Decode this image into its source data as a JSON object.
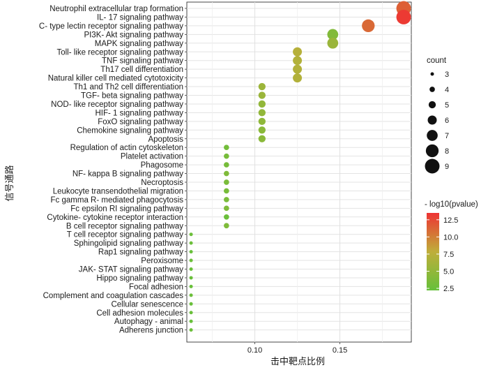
{
  "chart_data": {
    "type": "scatter",
    "xlabel": "击中靶点比例",
    "ylabel": "信号通路",
    "xlim": [
      0.06,
      0.192
    ],
    "xticks": [
      0.1,
      0.15
    ],
    "xtick_labels": [
      "0.10",
      "0.15"
    ],
    "grid": true,
    "legend_placement": "right",
    "size_legend": {
      "title": "count",
      "values": [
        3,
        4,
        5,
        6,
        7,
        8,
        9
      ]
    },
    "color_legend": {
      "title": "- log10(pvalue)",
      "tick_labels": [
        "2.5",
        "5.0",
        "7.5",
        "10.0",
        "12.5"
      ],
      "tick_values": [
        2.5,
        5.0,
        7.5,
        10.0,
        12.5
      ],
      "range": [
        2.2,
        13.5
      ],
      "low_color": "#66c03a",
      "mid_color": "#bfae3a",
      "high_color": "#ee3333"
    },
    "points": [
      {
        "pathway": "Neutrophil extracellular trap formation",
        "ratio": 0.1875,
        "count": 9,
        "neglog10p": 11.5
      },
      {
        "pathway": "IL- 17 signaling pathway",
        "ratio": 0.1875,
        "count": 9,
        "neglog10p": 13.2
      },
      {
        "pathway": "C- type lectin receptor signaling pathway",
        "ratio": 0.1667,
        "count": 8,
        "neglog10p": 11.0
      },
      {
        "pathway": "PI3K- Akt signaling pathway",
        "ratio": 0.1458,
        "count": 7,
        "neglog10p": 4.0
      },
      {
        "pathway": "MAPK signaling pathway",
        "ratio": 0.1458,
        "count": 7,
        "neglog10p": 5.5
      },
      {
        "pathway": "Toll- like receptor signaling pathway",
        "ratio": 0.125,
        "count": 6,
        "neglog10p": 7.3
      },
      {
        "pathway": "TNF signaling pathway",
        "ratio": 0.125,
        "count": 6,
        "neglog10p": 7.0
      },
      {
        "pathway": "Th17 cell differentiation",
        "ratio": 0.125,
        "count": 6,
        "neglog10p": 7.0
      },
      {
        "pathway": "Natural killer cell mediated cytotoxicity",
        "ratio": 0.125,
        "count": 6,
        "neglog10p": 7.0
      },
      {
        "pathway": "Th1 and Th2 cell differentiation",
        "ratio": 0.1042,
        "count": 5,
        "neglog10p": 5.6
      },
      {
        "pathway": "TGF- beta signaling pathway",
        "ratio": 0.1042,
        "count": 5,
        "neglog10p": 5.5
      },
      {
        "pathway": "NOD- like receptor signaling pathway",
        "ratio": 0.1042,
        "count": 5,
        "neglog10p": 5.0
      },
      {
        "pathway": "HIF- 1 signaling pathway",
        "ratio": 0.1042,
        "count": 5,
        "neglog10p": 5.0
      },
      {
        "pathway": "FoxO signaling pathway",
        "ratio": 0.1042,
        "count": 5,
        "neglog10p": 4.8
      },
      {
        "pathway": "Chemokine signaling pathway",
        "ratio": 0.1042,
        "count": 5,
        "neglog10p": 4.5
      },
      {
        "pathway": "Apoptosis",
        "ratio": 0.1042,
        "count": 5,
        "neglog10p": 4.5
      },
      {
        "pathway": "Regulation of actin cytoskeleton",
        "ratio": 0.0833,
        "count": 4,
        "neglog10p": 3.0
      },
      {
        "pathway": "Platelet activation",
        "ratio": 0.0833,
        "count": 4,
        "neglog10p": 3.3
      },
      {
        "pathway": "Phagosome",
        "ratio": 0.0833,
        "count": 4,
        "neglog10p": 3.3
      },
      {
        "pathway": "NF- kappa B signaling pathway",
        "ratio": 0.0833,
        "count": 4,
        "neglog10p": 3.8
      },
      {
        "pathway": "Necroptosis",
        "ratio": 0.0833,
        "count": 4,
        "neglog10p": 3.5
      },
      {
        "pathway": "Leukocyte transendothelial migration",
        "ratio": 0.0833,
        "count": 4,
        "neglog10p": 3.3
      },
      {
        "pathway": "Fc gamma R- mediated phagocytosis",
        "ratio": 0.0833,
        "count": 4,
        "neglog10p": 3.5
      },
      {
        "pathway": "Fc epsilon RI signaling pathway",
        "ratio": 0.0833,
        "count": 4,
        "neglog10p": 3.8
      },
      {
        "pathway": "Cytokine- cytokine receptor interaction",
        "ratio": 0.0833,
        "count": 4,
        "neglog10p": 2.5
      },
      {
        "pathway": "B cell receptor signaling pathway",
        "ratio": 0.0833,
        "count": 4,
        "neglog10p": 3.8
      },
      {
        "pathway": "T cell receptor signaling pathway",
        "ratio": 0.0625,
        "count": 3,
        "neglog10p": 2.6
      },
      {
        "pathway": "Sphingolipid signaling pathway",
        "ratio": 0.0625,
        "count": 3,
        "neglog10p": 2.6
      },
      {
        "pathway": "Rap1 signaling pathway",
        "ratio": 0.0625,
        "count": 3,
        "neglog10p": 2.3
      },
      {
        "pathway": "Peroxisome",
        "ratio": 0.0625,
        "count": 3,
        "neglog10p": 2.6
      },
      {
        "pathway": "JAK- STAT signaling pathway",
        "ratio": 0.0625,
        "count": 3,
        "neglog10p": 2.4
      },
      {
        "pathway": "Hippo signaling pathway",
        "ratio": 0.0625,
        "count": 3,
        "neglog10p": 2.4
      },
      {
        "pathway": "Focal adhesion",
        "ratio": 0.0625,
        "count": 3,
        "neglog10p": 2.3
      },
      {
        "pathway": "Complement and coagulation cascades",
        "ratio": 0.0625,
        "count": 3,
        "neglog10p": 2.6
      },
      {
        "pathway": "Cellular senescence",
        "ratio": 0.0625,
        "count": 3,
        "neglog10p": 2.4
      },
      {
        "pathway": "Cell adhesion molecules",
        "ratio": 0.0625,
        "count": 3,
        "neglog10p": 2.4
      },
      {
        "pathway": "Autophagy -  animal",
        "ratio": 0.0625,
        "count": 3,
        "neglog10p": 2.3
      },
      {
        "pathway": "Adherens junction",
        "ratio": 0.0625,
        "count": 3,
        "neglog10p": 2.5
      }
    ]
  }
}
